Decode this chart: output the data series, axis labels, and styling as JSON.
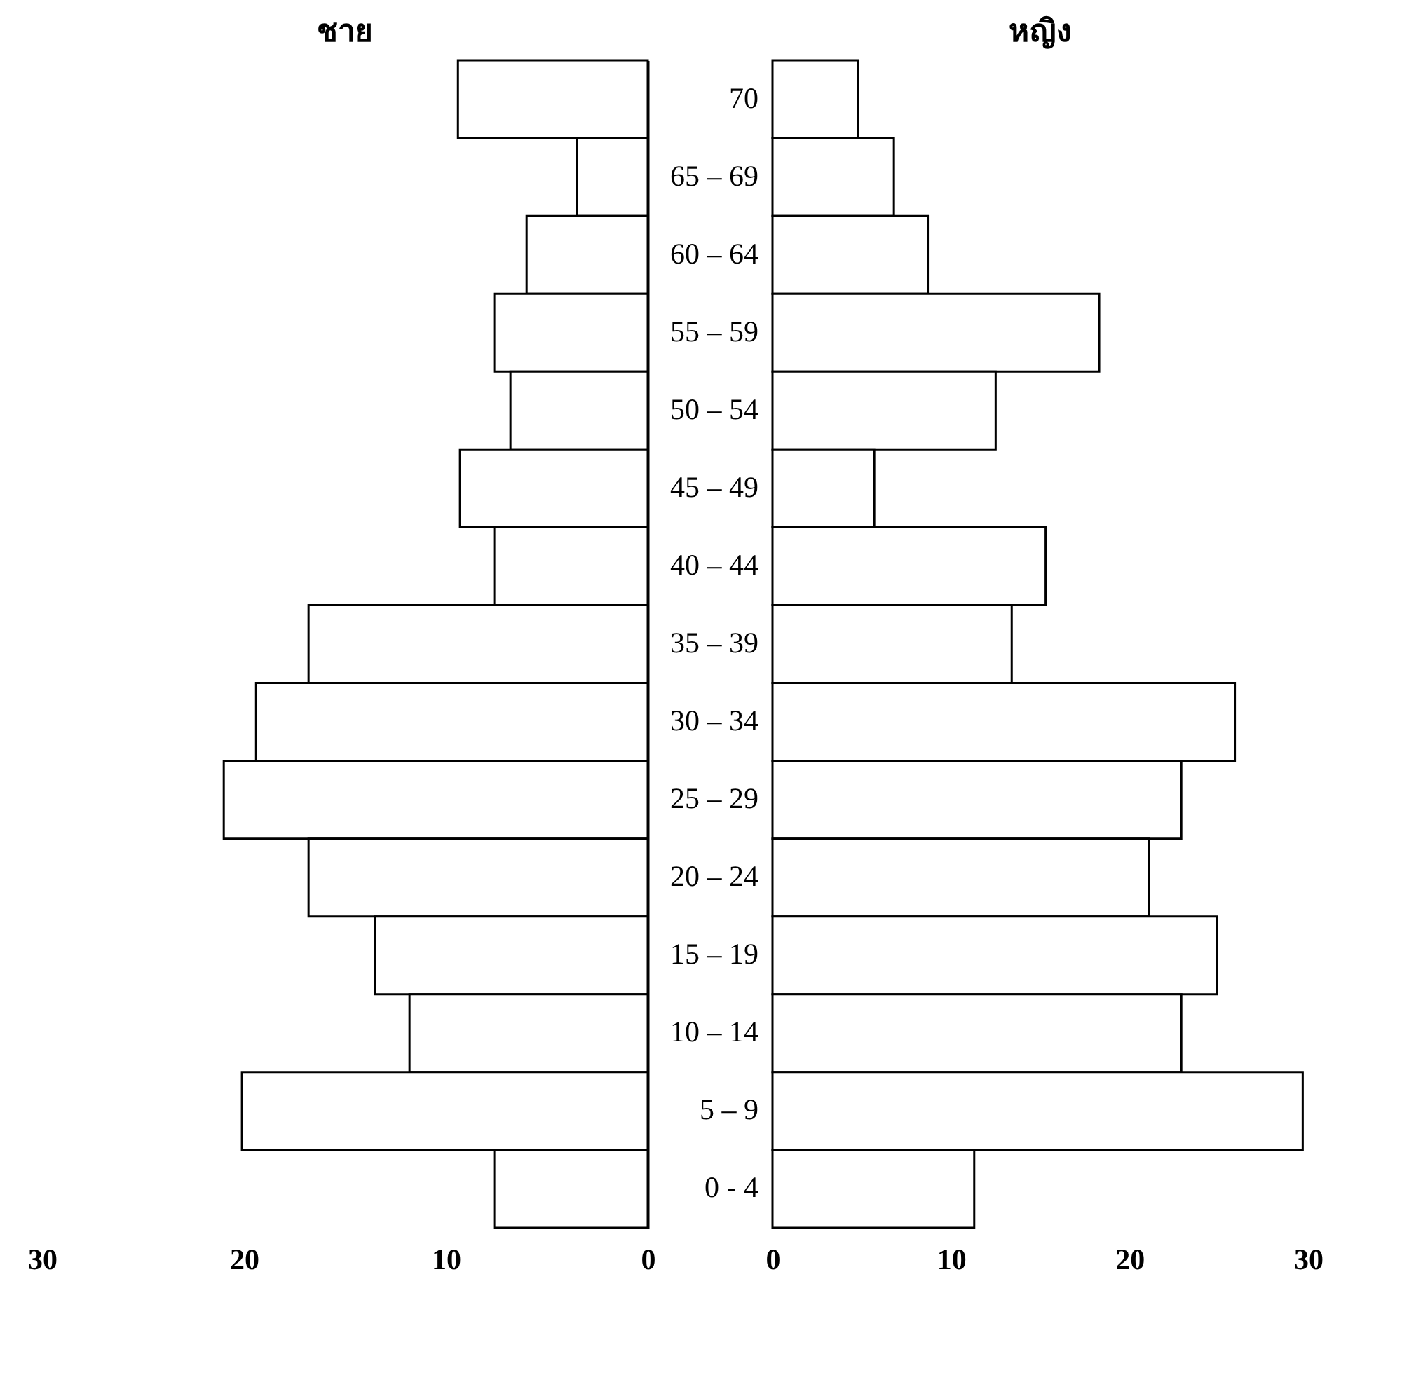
{
  "chart_data": [
    {
      "type": "bar",
      "orientation": "horizontal",
      "title": "ชาย",
      "categories": [
        null,
        null,
        null,
        null,
        null,
        null,
        null,
        null,
        null,
        null,
        null,
        null,
        null,
        null,
        null
      ],
      "series": [
        {
          "color": "#ffffff",
          "values": [
            9.4,
            3.5,
            6.0,
            7.6,
            6.8,
            9.3,
            7.6,
            16.8,
            19.4,
            21.0,
            16.8,
            13.5,
            11.8,
            20.1,
            7.6
          ]
        }
      ],
      "xlim": [
        30,
        0
      ],
      "xticks": [
        30,
        20,
        10,
        0
      ],
      "grid": false,
      "legend": false,
      "tick_labels": "x"
    },
    {
      "type": "bar",
      "orientation": "horizontal",
      "title": "หญิง",
      "categories": [
        "70",
        "65 – 69",
        "60 – 64",
        "55 – 59",
        "50 – 54",
        "45 – 49",
        "40 – 44",
        "35 – 39",
        "30 – 34",
        "25 – 29",
        "20 – 24",
        "15 – 19",
        "10 – 14",
        "5 – 9",
        "0 - 4"
      ],
      "series": [
        {
          "color": "#ffffff",
          "values": [
            4.8,
            6.8,
            8.7,
            18.3,
            12.5,
            5.7,
            15.3,
            13.4,
            25.9,
            22.9,
            21.1,
            24.9,
            22.9,
            29.7,
            11.3
          ]
        }
      ],
      "xlim": [
        0,
        30
      ],
      "xticks": [
        0,
        10,
        20,
        30
      ],
      "grid": false,
      "legend": false
    }
  ]
}
